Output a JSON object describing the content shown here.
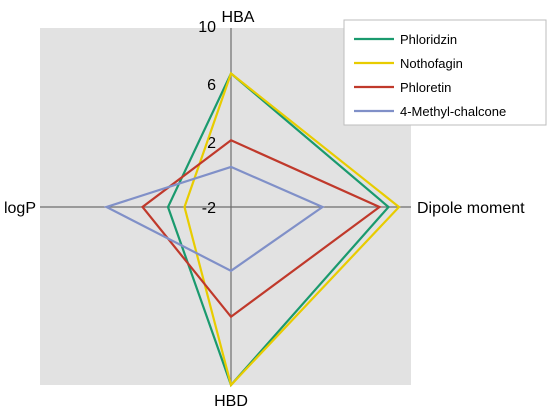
{
  "chart_data": {
    "type": "radar",
    "axes": [
      "HBA",
      "Dipole moment",
      "HBD",
      "logP"
    ],
    "ticks": [
      "-2",
      "2",
      "6",
      "10"
    ],
    "legend_position": "top-right",
    "grid": false,
    "series": [
      {
        "name": "Phloridzin",
        "color": "#1a9a6e",
        "values": {
          "HBA": 7,
          "Dipole moment": 8.5,
          "HBD": 10,
          "logP": 2.2
        }
      },
      {
        "name": "Nothofagin",
        "color": "#e8cc00",
        "values": {
          "HBA": 7,
          "Dipole moment": 9.2,
          "HBD": 10,
          "logP": 1.1
        }
      },
      {
        "name": "Phloretin",
        "color": "#c0392b",
        "values": {
          "HBA": 2.5,
          "Dipole moment": 7.9,
          "HBD": 5.4,
          "logP": 3.9
        }
      },
      {
        "name": "4-Methyl-chalcone",
        "color": "#8090c8",
        "values": {
          "HBA": 0.7,
          "Dipole moment": 4.1,
          "HBD": 2.3,
          "logP": 6.3
        }
      }
    ]
  }
}
